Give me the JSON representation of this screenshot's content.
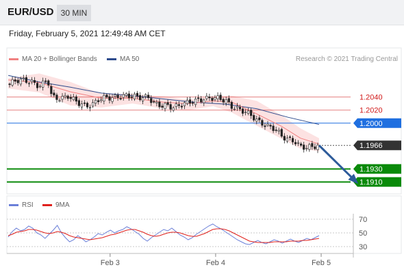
{
  "header": {
    "symbol": "EUR/USD",
    "timeframe": "30 MIN"
  },
  "datetime": "Friday, February 5, 2021 12:49:48 AM CET",
  "legend": {
    "ma20_bb": {
      "label": "MA 20 + Bollinger Bands",
      "color": "#f08080"
    },
    "ma50": {
      "label": "MA 50",
      "color": "#2c4a8c"
    }
  },
  "credit": "Research © 2021 Trading Central",
  "rsi_legend": {
    "rsi": {
      "label": "RSI",
      "color": "#6a7fd8"
    },
    "ma9": {
      "label": "9MA",
      "color": "#e0201b"
    }
  },
  "chart_data": [
    {
      "type": "line",
      "title": "",
      "y_range": [
        1.1895,
        1.2092
      ],
      "x_ticks": [
        {
          "label": "Feb 3",
          "t": 0.3225
        },
        {
          "label": "Feb 4",
          "t": 0.6565
        },
        {
          "label": "Feb 5",
          "t": 0.9905
        }
      ],
      "price_path": [
        [
          0.0,
          1.2058
        ],
        [
          0.02,
          1.2065
        ],
        [
          0.05,
          1.2066
        ],
        [
          0.08,
          1.2062
        ],
        [
          0.1,
          1.2056
        ],
        [
          0.12,
          1.2064
        ],
        [
          0.13,
          1.2062
        ],
        [
          0.14,
          1.204
        ],
        [
          0.17,
          1.2037
        ],
        [
          0.19,
          1.2042
        ],
        [
          0.21,
          1.2036
        ],
        [
          0.23,
          1.203
        ],
        [
          0.25,
          1.2026
        ],
        [
          0.27,
          1.2028
        ],
        [
          0.29,
          1.2036
        ],
        [
          0.31,
          1.2039
        ],
        [
          0.34,
          1.2039
        ],
        [
          0.36,
          1.2041
        ],
        [
          0.38,
          1.2042
        ],
        [
          0.41,
          1.2041
        ],
        [
          0.43,
          1.2039
        ],
        [
          0.45,
          1.204
        ],
        [
          0.47,
          1.203
        ],
        [
          0.49,
          1.2027
        ],
        [
          0.51,
          1.2027
        ],
        [
          0.53,
          1.2024
        ],
        [
          0.55,
          1.2027
        ],
        [
          0.57,
          1.2031
        ],
        [
          0.6,
          1.2034
        ],
        [
          0.63,
          1.2037
        ],
        [
          0.66,
          1.2039
        ],
        [
          0.68,
          1.2038
        ],
        [
          0.7,
          1.2034
        ],
        [
          0.72,
          1.2025
        ],
        [
          0.75,
          1.202
        ],
        [
          0.78,
          1.2013
        ],
        [
          0.8,
          1.2004
        ],
        [
          0.83,
          1.1996
        ],
        [
          0.86,
          1.1991
        ],
        [
          0.88,
          1.198
        ],
        [
          0.9,
          1.1975
        ],
        [
          0.92,
          1.1973
        ],
        [
          0.94,
          1.1964
        ],
        [
          0.96,
          1.1963
        ],
        [
          0.98,
          1.1964
        ],
        [
          1.0,
          1.1966
        ]
      ],
      "ma20_path": [
        [
          0.0,
          1.2066
        ],
        [
          0.1,
          1.2062
        ],
        [
          0.2,
          1.2048
        ],
        [
          0.3,
          1.2038
        ],
        [
          0.4,
          1.2038
        ],
        [
          0.5,
          1.2032
        ],
        [
          0.58,
          1.203
        ],
        [
          0.66,
          1.2034
        ],
        [
          0.72,
          1.2032
        ],
        [
          0.8,
          1.2014
        ],
        [
          0.88,
          1.1995
        ],
        [
          0.94,
          1.1977
        ],
        [
          1.0,
          1.1968
        ]
      ],
      "bb_upper_path": [
        [
          0.0,
          1.2069
        ],
        [
          0.1,
          1.2076
        ],
        [
          0.2,
          1.2063
        ],
        [
          0.3,
          1.2045
        ],
        [
          0.4,
          1.2045
        ],
        [
          0.5,
          1.2041
        ],
        [
          0.58,
          1.2036
        ],
        [
          0.66,
          1.2041
        ],
        [
          0.72,
          1.2042
        ],
        [
          0.8,
          1.2034
        ],
        [
          0.88,
          1.2012
        ],
        [
          0.94,
          1.1992
        ],
        [
          1.0,
          1.1977
        ]
      ],
      "bb_lower_path": [
        [
          0.0,
          1.2053
        ],
        [
          0.1,
          1.2047
        ],
        [
          0.2,
          1.2027
        ],
        [
          0.3,
          1.2024
        ],
        [
          0.4,
          1.203
        ],
        [
          0.5,
          1.2022
        ],
        [
          0.58,
          1.202
        ],
        [
          0.66,
          1.2026
        ],
        [
          0.72,
          1.2016
        ],
        [
          0.8,
          1.1996
        ],
        [
          0.88,
          1.1976
        ],
        [
          0.94,
          1.1961
        ],
        [
          1.0,
          1.1957
        ]
      ],
      "ma50_path": [
        [
          0.0,
          1.2073
        ],
        [
          0.1,
          1.2063
        ],
        [
          0.2,
          1.2055
        ],
        [
          0.3,
          1.2046
        ],
        [
          0.4,
          1.2042
        ],
        [
          0.5,
          1.2037
        ],
        [
          0.6,
          1.2032
        ],
        [
          0.7,
          1.2029
        ],
        [
          0.8,
          1.2022
        ],
        [
          0.9,
          1.2009
        ],
        [
          1.0,
          1.1998
        ]
      ],
      "levels": [
        {
          "value": 1.204,
          "label": "1.2040",
          "kind": "resistance",
          "color": "#d11a1a"
        },
        {
          "value": 1.202,
          "label": "1.2020",
          "kind": "resistance",
          "color": "#d11a1a"
        },
        {
          "value": 1.2,
          "label": "1.2000",
          "kind": "pivot",
          "color": "#1f6fe0"
        },
        {
          "value": 1.1966,
          "label": "1.1966",
          "kind": "last_price",
          "color": "#333333"
        },
        {
          "value": 1.193,
          "label": "1.1930",
          "kind": "target",
          "color": "#0a8a0a"
        },
        {
          "value": 1.191,
          "label": "1.1910",
          "kind": "target",
          "color": "#0a8a0a"
        }
      ],
      "forecast_arrow": {
        "from": [
          1.0,
          1.1966
        ],
        "to": [
          1.12,
          1.191
        ],
        "color": "#2d5b9a"
      }
    },
    {
      "type": "line",
      "title": "RSI",
      "y_range": [
        22,
        78
      ],
      "y_ticks": [
        70,
        50,
        30
      ],
      "series": [
        {
          "name": "RSI",
          "values": [
            44,
            52,
            57,
            53,
            55,
            60,
            57,
            50,
            47,
            42,
            48,
            54,
            61,
            50,
            43,
            37,
            40,
            46,
            42,
            37,
            40,
            44,
            49,
            47,
            51,
            54,
            50,
            53,
            55,
            59,
            56,
            52,
            48,
            42,
            38,
            43,
            47,
            51,
            55,
            53,
            57,
            52,
            47,
            44,
            40,
            43,
            48,
            52,
            56,
            60,
            63,
            59,
            56,
            52,
            48,
            44,
            40,
            37,
            34,
            33,
            36,
            39,
            36,
            34,
            37,
            40,
            38,
            35,
            38,
            41,
            38,
            36,
            39,
            42,
            40,
            43,
            46
          ]
        },
        {
          "name": "9MA",
          "values": [
            46,
            48,
            51,
            52,
            53,
            55,
            55,
            54,
            52,
            50,
            49,
            50,
            52,
            51,
            49,
            46,
            44,
            43,
            42,
            41,
            40,
            41,
            42,
            43,
            45,
            47,
            48,
            50,
            52,
            54,
            55,
            55,
            53,
            51,
            48,
            46,
            45,
            46,
            48,
            50,
            51,
            51,
            50,
            48,
            46,
            45,
            45,
            47,
            49,
            52,
            55,
            56,
            56,
            55,
            53,
            50,
            47,
            44,
            41,
            38,
            37,
            36,
            36,
            36,
            36,
            37,
            37,
            37,
            37,
            38,
            38,
            38,
            39,
            39,
            40,
            41,
            42
          ]
        }
      ]
    }
  ]
}
